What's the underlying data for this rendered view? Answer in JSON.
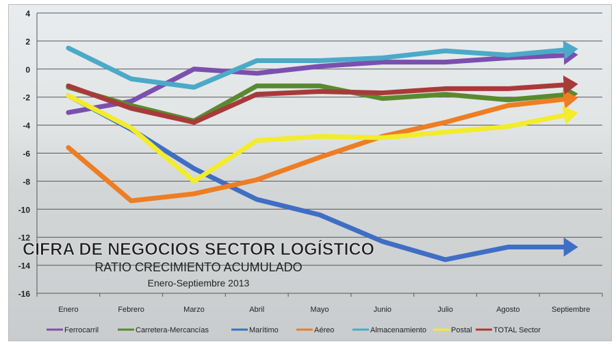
{
  "chart_data": {
    "type": "line",
    "title": "CIFRA DE NEGOCIOS SECTOR LOGÍSTICO",
    "subtitle": "RATIO CRECIMIENTO ACUMULADO",
    "period": "Enero-Septiembre 2013",
    "xlabel": "",
    "ylabel": "",
    "ylim": [
      -16,
      4
    ],
    "yticks": [
      4,
      2,
      0,
      -2,
      -4,
      -6,
      -8,
      -10,
      -12,
      -14,
      -16
    ],
    "grid": true,
    "legend_position": "bottom",
    "categories": [
      "Enero",
      "Febrero",
      "Marzo",
      "Abril",
      "Mayo",
      "Junio",
      "Julio",
      "Agosto",
      "Septiembre"
    ],
    "series": [
      {
        "name": "Ferrocarril",
        "color": "#7b4fb0",
        "values": [
          -3.1,
          -2.3,
          0.0,
          -0.3,
          0.2,
          0.5,
          0.5,
          0.8,
          1.0
        ]
      },
      {
        "name": "Carretera-Mercancías",
        "color": "#5a8a30",
        "values": [
          -1.3,
          -2.6,
          -3.7,
          -1.2,
          -1.2,
          -2.1,
          -1.8,
          -2.2,
          -1.8
        ]
      },
      {
        "name": "Marítimo",
        "color": "#3f6ec4",
        "values": [
          -1.9,
          -4.3,
          -7.1,
          -9.3,
          -10.4,
          -12.3,
          -13.6,
          -12.7,
          -12.7
        ]
      },
      {
        "name": "Aéreo",
        "color": "#ee7d23",
        "values": [
          -5.6,
          -9.4,
          -8.9,
          -7.9,
          -6.3,
          -4.8,
          -3.8,
          -2.6,
          -2.1
        ]
      },
      {
        "name": "Almacenamiento",
        "color": "#4aaac8",
        "values": [
          1.5,
          -0.7,
          -1.3,
          0.6,
          0.6,
          0.8,
          1.3,
          1.0,
          1.4
        ]
      },
      {
        "name": "Postal",
        "color": "#f2ec2c",
        "values": [
          -1.9,
          -4.2,
          -8.0,
          -5.1,
          -4.8,
          -4.9,
          -4.5,
          -4.1,
          -3.2
        ]
      },
      {
        "name": "TOTAL Sector",
        "color": "#a83a3a",
        "values": [
          -1.2,
          -2.8,
          -3.8,
          -1.8,
          -1.6,
          -1.7,
          -1.4,
          -1.4,
          -1.1
        ]
      }
    ]
  }
}
